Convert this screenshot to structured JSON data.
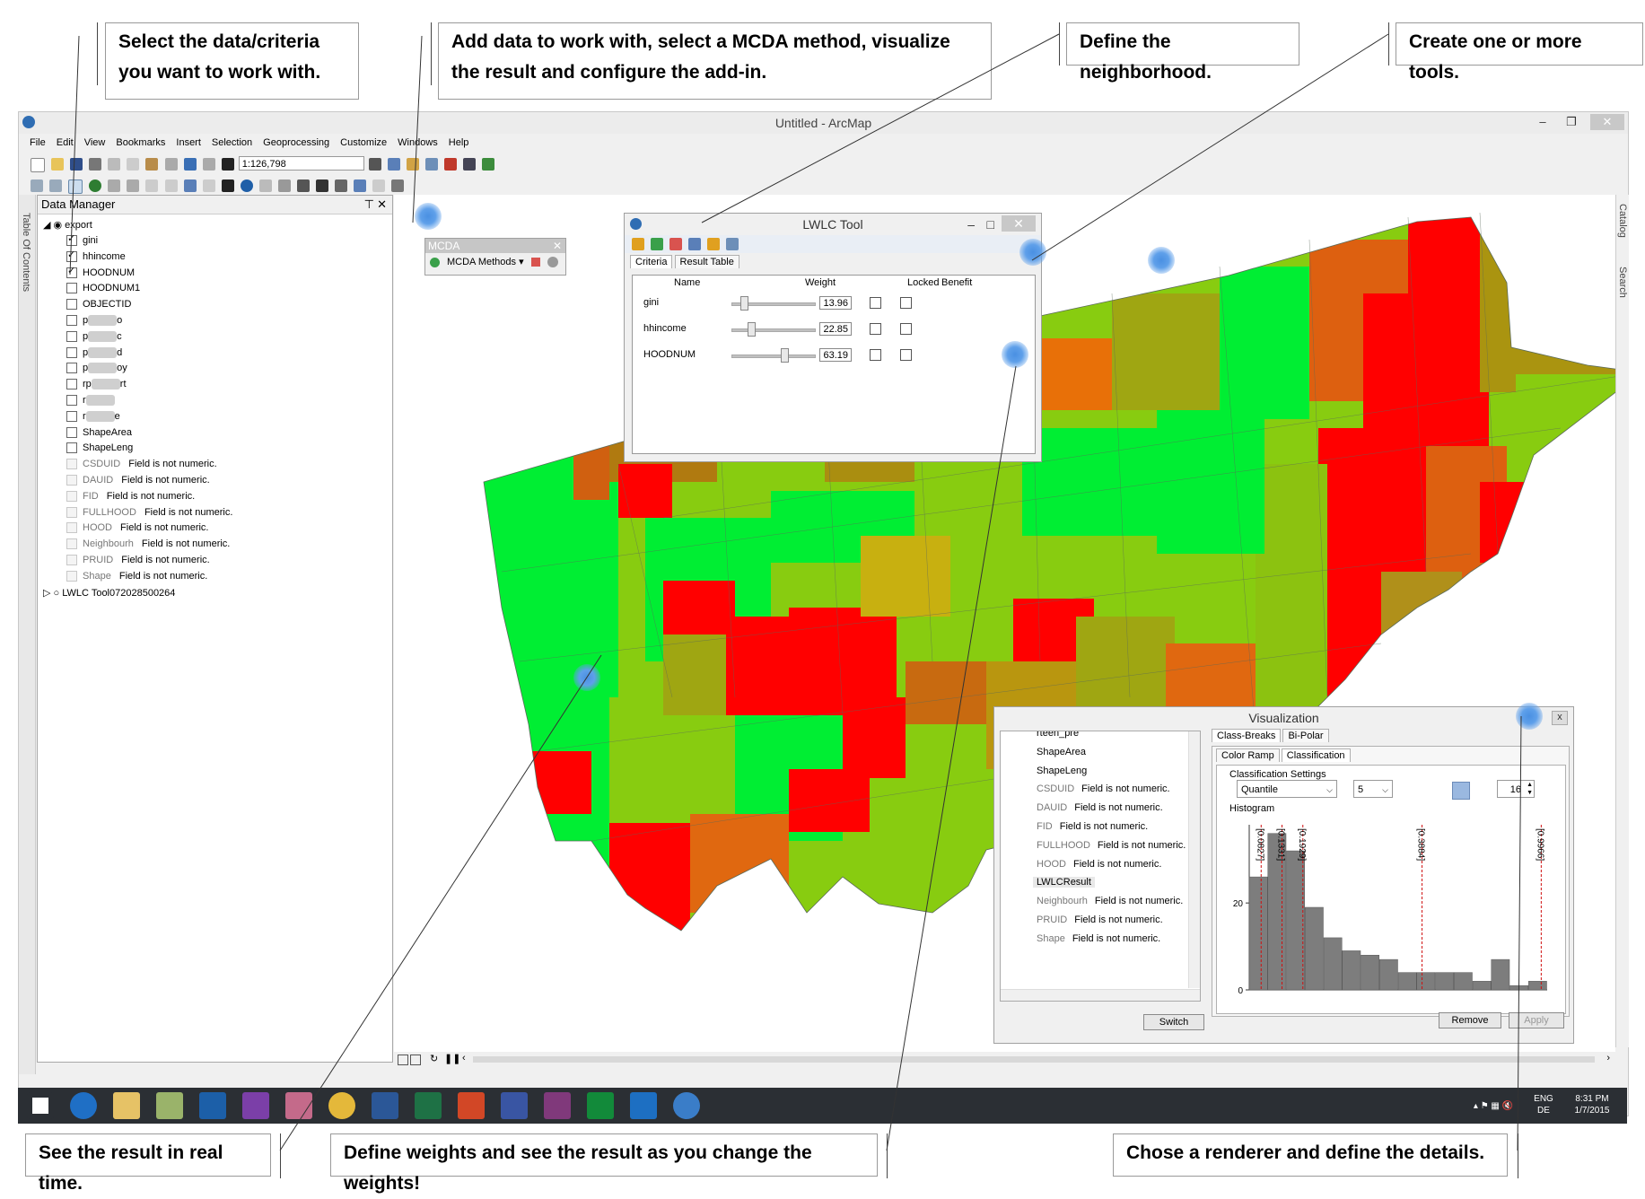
{
  "callouts": {
    "select_data": "Select the data/criteria you want to work with.",
    "add_data": "Add data to work with, select a MCDA method, visualize the result and configure the add-in.",
    "neighborhood": "Define the neighborhood.",
    "create_tools": "Create one or more tools.",
    "realtime": "See the result in real time.",
    "weights": "Define weights and see the result as you change the weights!",
    "renderer": "Chose a renderer and define the details."
  },
  "app": {
    "title": "Untitled - ArcMap",
    "menu": [
      "File",
      "Edit",
      "View",
      "Bookmarks",
      "Insert",
      "Selection",
      "Geoprocessing",
      "Customize",
      "Windows",
      "Help"
    ],
    "scale": "1:126,798",
    "toc_tab": "Table Of Contents",
    "right_tabs": [
      "Catalog",
      "Search"
    ]
  },
  "data_manager": {
    "title": "Data Manager",
    "layer": "export",
    "fields": [
      {
        "name": "gini",
        "checked": true,
        "numeric": true
      },
      {
        "name": "hhincome",
        "checked": true,
        "numeric": true
      },
      {
        "name": "HOODNUM",
        "checked": true,
        "numeric": true
      },
      {
        "name": "HOODNUM1",
        "checked": false,
        "numeric": true
      },
      {
        "name": "OBJECTID",
        "checked": false,
        "numeric": true
      },
      {
        "name": "p",
        "suffix": "o",
        "checked": false,
        "numeric": true,
        "blurred": true
      },
      {
        "name": "p",
        "suffix": "c",
        "checked": false,
        "numeric": true,
        "blurred": true
      },
      {
        "name": "p",
        "suffix": "d",
        "checked": false,
        "numeric": true,
        "blurred": true
      },
      {
        "name": "p",
        "suffix": "oy",
        "checked": false,
        "numeric": true,
        "blurred": true
      },
      {
        "name": "rp",
        "suffix": "rt",
        "checked": false,
        "numeric": true,
        "blurred": true
      },
      {
        "name": "r",
        "suffix": "",
        "checked": false,
        "numeric": true,
        "blurred": true
      },
      {
        "name": "r",
        "suffix": "e",
        "checked": false,
        "numeric": true,
        "blurred": true
      },
      {
        "name": "ShapeArea",
        "checked": false,
        "numeric": true
      },
      {
        "name": "ShapeLeng",
        "checked": false,
        "numeric": true
      },
      {
        "name": "CSDUID",
        "note": "Field is not numeric.",
        "numeric": false
      },
      {
        "name": "DAUID",
        "note": "Field is not numeric.",
        "numeric": false
      },
      {
        "name": "FID",
        "note": "Field is not numeric.",
        "numeric": false
      },
      {
        "name": "FULLHOOD",
        "note": "Field is not numeric.",
        "numeric": false
      },
      {
        "name": "HOOD",
        "note": "Field is not numeric.",
        "numeric": false
      },
      {
        "name": "Neighbourh",
        "note": "Field is not numeric.",
        "numeric": false
      },
      {
        "name": "PRUID",
        "note": "Field is not numeric.",
        "numeric": false
      },
      {
        "name": "Shape",
        "note": "Field is not numeric.",
        "numeric": false
      }
    ],
    "tool_layer": "LWLC Tool072028500264"
  },
  "mcda": {
    "title": "MCDA",
    "menu": "MCDA Methods"
  },
  "lwlc": {
    "title": "LWLC Tool",
    "tabs": [
      "Criteria",
      "Result Table"
    ],
    "columns": [
      "Name",
      "Weight",
      "Locked",
      "Benefit"
    ],
    "rows": [
      {
        "name": "gini",
        "weight": "13.96",
        "w": 0.14
      },
      {
        "name": "hhincome",
        "weight": "22.85",
        "w": 0.23
      },
      {
        "name": "HOODNUM",
        "weight": "63.19",
        "w": 0.63
      }
    ]
  },
  "visualization": {
    "title": "Visualization",
    "close": "x",
    "fields": [
      {
        "name": "rteen_pre",
        "note": ""
      },
      {
        "name": "ShapeArea",
        "note": ""
      },
      {
        "name": "ShapeLeng",
        "note": ""
      },
      {
        "name": "CSDUID",
        "note": "Field is not numeric."
      },
      {
        "name": "DAUID",
        "note": "Field is not numeric."
      },
      {
        "name": "FID",
        "note": "Field is not numeric."
      },
      {
        "name": "FULLHOOD",
        "note": "Field is not numeric."
      },
      {
        "name": "HOOD",
        "note": "Field is not numeric."
      },
      {
        "name": "LWLCResult",
        "note": ""
      },
      {
        "name": "Neighbourh",
        "note": "Field is not numeric."
      },
      {
        "name": "PRUID",
        "note": "Field is not numeric."
      },
      {
        "name": "Shape",
        "note": "Field is not numeric."
      }
    ],
    "switch_label": "Switch",
    "tabs_top": [
      "Class-Breaks",
      "Bi-Polar"
    ],
    "tabs_sub": [
      "Color Ramp",
      "Classification"
    ],
    "settings_label": "Classification Settings",
    "method": "Quantile",
    "classes": "5",
    "bins": "16",
    "histogram_label": "Histogram",
    "remove_label": "Remove",
    "apply_label": "Apply"
  },
  "chart_data": {
    "type": "bar",
    "title": "Histogram",
    "y_ticks": [
      0,
      20
    ],
    "values": [
      26,
      36,
      32,
      19,
      12,
      9,
      8,
      7,
      4,
      4,
      4,
      4,
      2,
      7,
      1,
      2
    ],
    "breaks": [
      "[0.0827]",
      "[0.1331]",
      "[0.1929]",
      "[0.3884]",
      "[0.9966]"
    ],
    "ylim": [
      0,
      38
    ]
  },
  "taskbar": {
    "lang": "ENG",
    "region": "DE",
    "time": "8:31 PM",
    "date": "1/7/2015"
  }
}
